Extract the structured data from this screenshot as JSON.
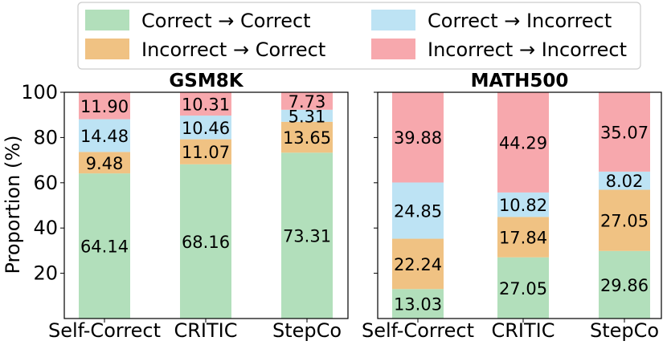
{
  "chart_data": {
    "type": "bar",
    "stacked": true,
    "ylabel": "Proportion (%)",
    "ylim": [
      0,
      100
    ],
    "yticks": [
      20,
      40,
      60,
      80,
      100
    ],
    "grid": false,
    "legend_position": "top",
    "legend": [
      {
        "name": "Correct → Correct",
        "color": "#b2dfbb"
      },
      {
        "name": "Correct → Incorrect",
        "color": "#bde3f4"
      },
      {
        "name": "Incorrect → Correct",
        "color": "#f0c283"
      },
      {
        "name": "Incorrect → Incorrect",
        "color": "#f7a8ad"
      }
    ],
    "panels": [
      {
        "title": "GSM8K",
        "categories": [
          "Self-Correct",
          "CRITIC",
          "StepCo"
        ],
        "series": [
          {
            "name": "Correct → Correct",
            "color": "#b2dfbb",
            "values": [
              64.14,
              68.16,
              73.31
            ]
          },
          {
            "name": "Incorrect → Correct",
            "color": "#f0c283",
            "values": [
              9.48,
              11.07,
              13.65
            ]
          },
          {
            "name": "Correct → Incorrect",
            "color": "#bde3f4",
            "values": [
              14.48,
              10.46,
              5.31
            ]
          },
          {
            "name": "Incorrect → Incorrect",
            "color": "#f7a8ad",
            "values": [
              11.9,
              10.31,
              7.73
            ]
          }
        ]
      },
      {
        "title": "MATH500",
        "categories": [
          "Self-Correct",
          "CRITIC",
          "StepCo"
        ],
        "series": [
          {
            "name": "Correct → Correct",
            "color": "#b2dfbb",
            "values": [
              13.03,
              27.05,
              29.86
            ]
          },
          {
            "name": "Incorrect → Correct",
            "color": "#f0c283",
            "values": [
              22.24,
              17.84,
              27.05
            ]
          },
          {
            "name": "Correct → Incorrect",
            "color": "#bde3f4",
            "values": [
              24.85,
              10.82,
              8.02
            ]
          },
          {
            "name": "Incorrect → Incorrect",
            "color": "#f7a8ad",
            "values": [
              39.88,
              44.29,
              35.07
            ]
          }
        ]
      }
    ]
  }
}
